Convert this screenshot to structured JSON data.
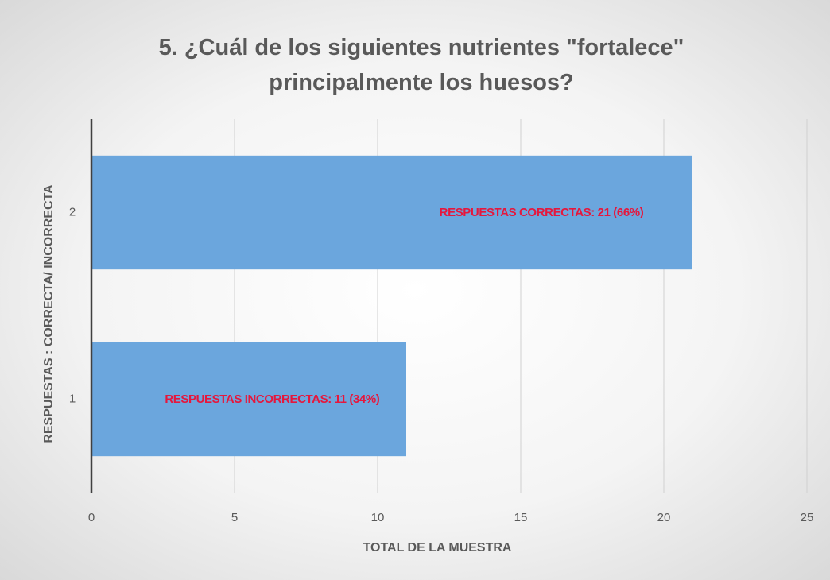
{
  "chart_data": {
    "type": "hbar",
    "title": "5. ¿Cuál de los siguientes nutrientes \"fortalece\" principalmente los huesos?",
    "x_label": "TOTAL DE LA MUESTRA",
    "y_label": "RESPUESTAS : CORRECTA/ INCORRECTA",
    "categories": [
      "1",
      "2"
    ],
    "values": [
      11,
      21
    ],
    "value_labels": [
      "RESPUESTAS INCORRECTAS: 11 (34%)",
      "RESPUESTAS CORRECTAS: 21 (66%)"
    ],
    "color": "#6ba6dd",
    "label_color": "#e5173d",
    "xlim": [
      0,
      25
    ],
    "xticks": [
      0,
      5,
      10,
      15,
      20,
      25
    ],
    "grid": true
  }
}
